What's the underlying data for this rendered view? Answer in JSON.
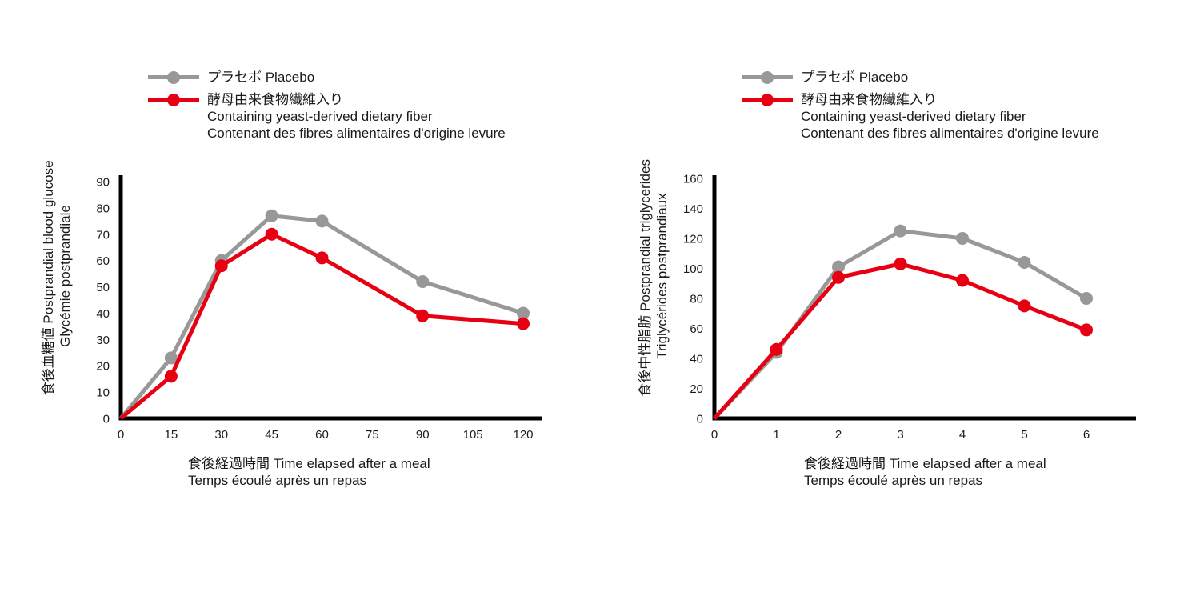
{
  "page": {
    "background": "#ffffff"
  },
  "colors": {
    "placebo": "#989898",
    "fiber": "#e60012",
    "axis": "#000000",
    "text": "#1a1a1a"
  },
  "legend": {
    "placebo": "プラセボ Placebo",
    "fiber_ja": "酵母由来食物繊維入り",
    "fiber_en": "Containing yeast-derived dietary fiber",
    "fiber_fr": "Contenant des fibres alimentaires d'origine levure"
  },
  "chart_data": [
    {
      "id": "postprandial-blood-glucose",
      "type": "line",
      "ylabel_line1": "食後血糖値 Postprandial blood glucose",
      "ylabel_line2": "Glycémie postprandiale",
      "xlabel_line1": "食後経過時間 Time elapsed after a meal",
      "xlabel_line2": "Temps écoulé après un repas",
      "x": [
        0,
        15,
        30,
        45,
        60,
        90,
        120
      ],
      "x_ticks": [
        0,
        15,
        30,
        45,
        60,
        75,
        90,
        105,
        120
      ],
      "y_ticks": [
        0,
        10,
        20,
        30,
        40,
        50,
        60,
        70,
        80,
        90
      ],
      "xlim": [
        0,
        120
      ],
      "ylim": [
        0,
        90
      ],
      "grid": false,
      "legend_position": "top-left",
      "series": [
        {
          "name": "プラセボ Placebo",
          "color": "#989898",
          "values": [
            0,
            23,
            60,
            77,
            75,
            52,
            40
          ]
        },
        {
          "name": "酵母由来食物繊維入り Containing yeast-derived dietary fiber",
          "color": "#e60012",
          "values": [
            0,
            16,
            58,
            70,
            61,
            39,
            36
          ]
        }
      ]
    },
    {
      "id": "postprandial-triglycerides",
      "type": "line",
      "ylabel_line1": "食後中性脂肪 Postprandial triglycerides",
      "ylabel_line2": "Triglycérides postprandiaux",
      "xlabel_line1": "食後経過時間 Time elapsed after a meal",
      "xlabel_line2": "Temps écoulé après un repas",
      "x": [
        0,
        1,
        2,
        3,
        4,
        5,
        6
      ],
      "x_ticks": [
        0,
        1,
        2,
        3,
        4,
        5,
        6
      ],
      "y_ticks": [
        0,
        20,
        40,
        60,
        80,
        100,
        120,
        140,
        160
      ],
      "xlim": [
        0,
        6
      ],
      "ylim": [
        0,
        160
      ],
      "grid": false,
      "legend_position": "top-left",
      "series": [
        {
          "name": "プラセボ Placebo",
          "color": "#989898",
          "values": [
            0,
            44,
            101,
            125,
            120,
            104,
            80
          ]
        },
        {
          "name": "酵母由来食物繊維入り Containing yeast-derived dietary fiber",
          "color": "#e60012",
          "values": [
            0,
            46,
            94,
            103,
            92,
            75,
            59
          ]
        }
      ]
    }
  ]
}
